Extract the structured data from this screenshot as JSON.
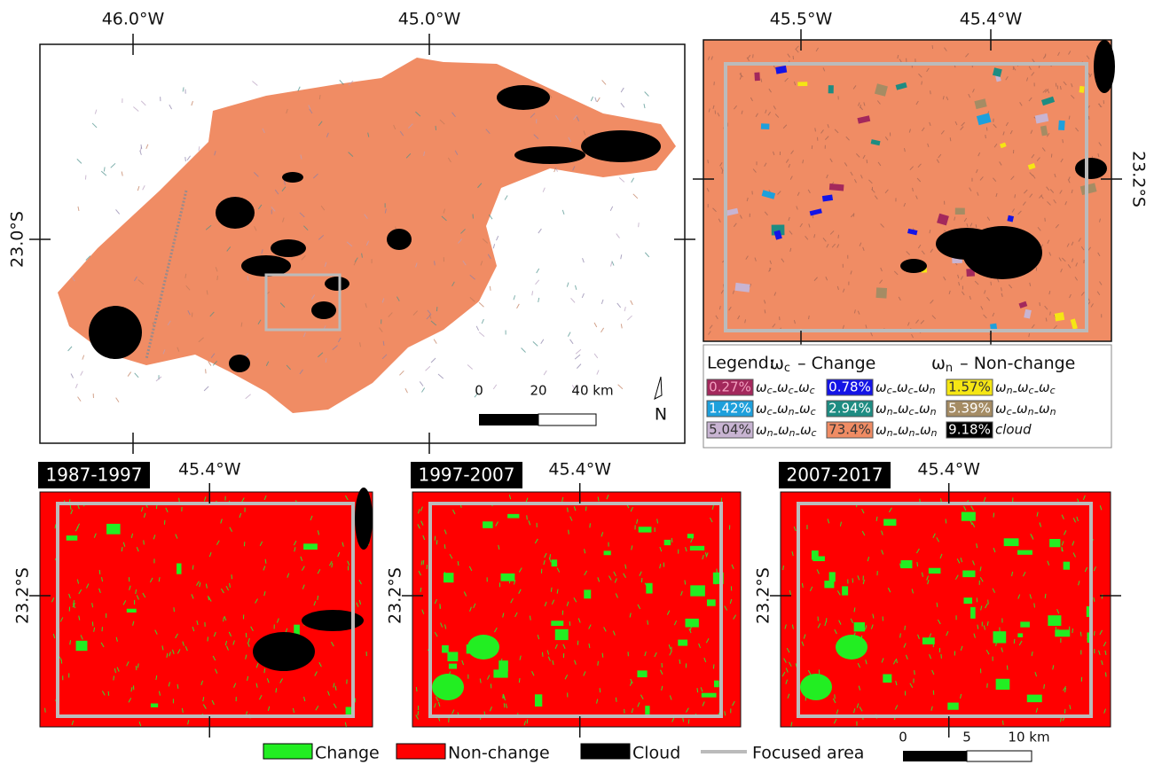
{
  "main_map": {
    "lon_labels": [
      "46.0°W",
      "45.0°W"
    ],
    "lat_label": "23.0°S",
    "scale_labels": [
      "0",
      "20",
      "40 km"
    ],
    "north": "N"
  },
  "inset_map": {
    "lon_labels": [
      "45.5°W",
      "45.4°W"
    ],
    "lat_label": "23.2°S"
  },
  "legend": {
    "title": "Legend:",
    "keys": [
      {
        "symbol": "ω",
        "sub": "c",
        "text": "– Change"
      },
      {
        "symbol": "ω",
        "sub": "n",
        "text": "– Non-change"
      }
    ],
    "items": [
      {
        "percent": "0.27%",
        "subs": [
          "c",
          "c",
          "c"
        ],
        "color": "#a3285c",
        "text_color": "#f3a0c0"
      },
      {
        "percent": "0.78%",
        "subs": [
          "c",
          "c",
          "n"
        ],
        "color": "#1414e6",
        "text_color": "#ffffff"
      },
      {
        "percent": "1.57%",
        "subs": [
          "n",
          "c",
          "c"
        ],
        "color": "#f5e614",
        "text_color": "#333333"
      },
      {
        "percent": "1.42%",
        "subs": [
          "c",
          "n",
          "c"
        ],
        "color": "#1ea0dc",
        "text_color": "#ffffff"
      },
      {
        "percent": "2.94%",
        "subs": [
          "n",
          "c",
          "n"
        ],
        "color": "#1e8c82",
        "text_color": "#ffffff"
      },
      {
        "percent": "5.39%",
        "subs": [
          "c",
          "n",
          "n"
        ],
        "color": "#a58c64",
        "text_color": "#ffffff"
      },
      {
        "percent": "5.04%",
        "subs": [
          "n",
          "n",
          "c"
        ],
        "color": "#c8b4d2",
        "text_color": "#333333"
      },
      {
        "percent": "73.4%",
        "subs": [
          "n",
          "n",
          "n"
        ],
        "color": "#f08c64",
        "text_color": "#333333"
      },
      {
        "percent": "9.18%",
        "label": "cloud",
        "color": "#000000",
        "text_color": "#ffffff"
      }
    ]
  },
  "panels": [
    {
      "period": "1987-1997",
      "lon_label": "45.4°W",
      "lat_label": "23.2°S"
    },
    {
      "period": "1997-2007",
      "lon_label": "45.4°W",
      "lat_label": "23.2°S"
    },
    {
      "period": "2007-2017",
      "lon_label": "45.4°W",
      "lat_label": "23.2°S"
    }
  ],
  "bottom_legend": [
    {
      "label": "Change",
      "color": "#22ee22"
    },
    {
      "label": "Non-change",
      "color": "#ff0000"
    },
    {
      "label": "Cloud",
      "color": "#000000"
    },
    {
      "label": "Focused area",
      "color": "#bbbbbb"
    }
  ],
  "bottom_scale_labels": [
    "0",
    "5",
    "10 km"
  ]
}
